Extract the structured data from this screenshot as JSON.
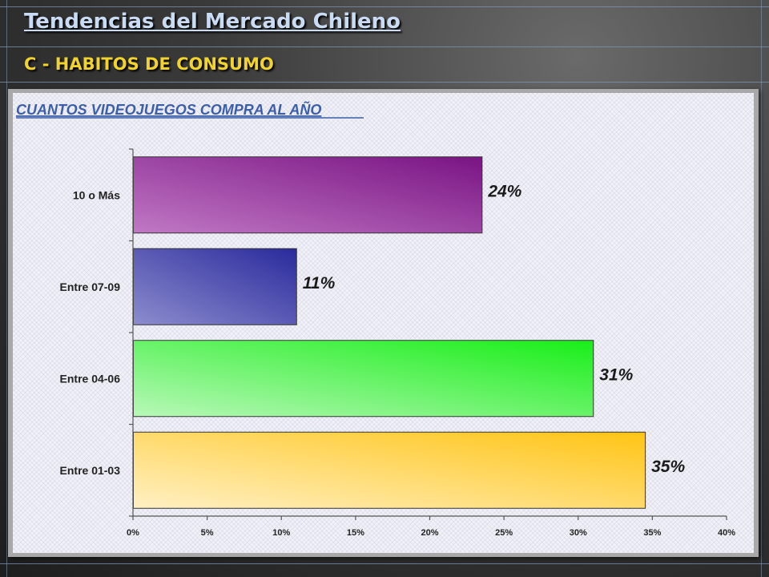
{
  "slide": {
    "title": "Tendencias del Mercado Chileno",
    "subtitle": "C - HABITOS DE CONSUMO"
  },
  "chart_data": {
    "type": "bar",
    "orientation": "horizontal",
    "title": "CUANTOS VIDEOJUEGOS COMPRA AL AÑO",
    "categories": [
      "10 o Más",
      "Entre 07-09",
      "Entre 04-06",
      "Entre 01-03"
    ],
    "values": [
      23.5,
      11,
      31,
      34.5
    ],
    "data_labels": [
      "24%",
      "11%",
      "31%",
      "35%"
    ],
    "xlim": [
      0,
      40
    ],
    "x_ticks": [
      "0%",
      "5%",
      "10%",
      "15%",
      "20%",
      "25%",
      "30%",
      "35%",
      "40%"
    ],
    "grid": false,
    "legend": "none",
    "colors": [
      {
        "start": "#c078c4",
        "end": "#7a1484"
      },
      {
        "start": "#8c8cce",
        "end": "#2a2a9c"
      },
      {
        "start": "#b8f8b8",
        "end": "#18ee18"
      },
      {
        "start": "#fff0c4",
        "end": "#ffc414"
      }
    ]
  }
}
